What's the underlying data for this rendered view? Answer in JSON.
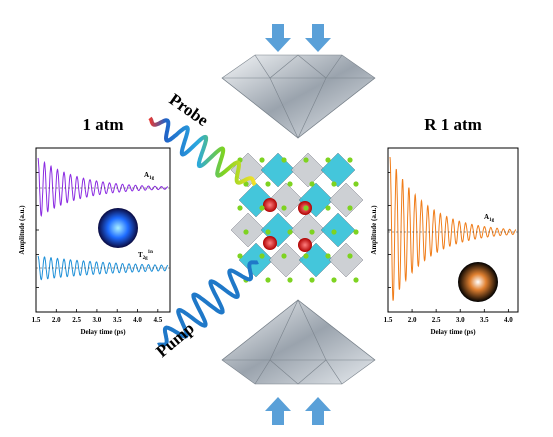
{
  "left_panel": {
    "title": "1 atm",
    "y_label": "Amplitude (a.u.)",
    "x_label": "Delay time (ps)",
    "xlim": [
      1.5,
      4.8
    ],
    "xticks": [
      1.5,
      {
        "value": 2,
        "label": "2.0"
      },
      2.5,
      {
        "value": 3,
        "label": "3.0"
      },
      3.5,
      {
        "value": 4,
        "label": "4.0"
      },
      4.5
    ],
    "mode_1": {
      "symbol": "A",
      "subscript": "1g"
    },
    "mode_2": {
      "symbol": "T",
      "subscript": "2g",
      "superscript": "1n"
    }
  },
  "right_panel": {
    "title": "R 1 atm",
    "y_label": "Amplitude (a.u.)",
    "x_label": "Delay time (ps)",
    "xlim": [
      1.5,
      4.2
    ],
    "xticks": [
      1.5,
      {
        "value": 2,
        "label": "2.0"
      },
      2.5,
      {
        "value": 3,
        "label": "3.0"
      },
      3.5,
      {
        "value": 4,
        "label": "4.0"
      }
    ],
    "mode_1": {
      "symbol": "A",
      "subscript": "1g"
    }
  },
  "labels": {
    "probe": "Probe",
    "pump": "Pump"
  }
}
